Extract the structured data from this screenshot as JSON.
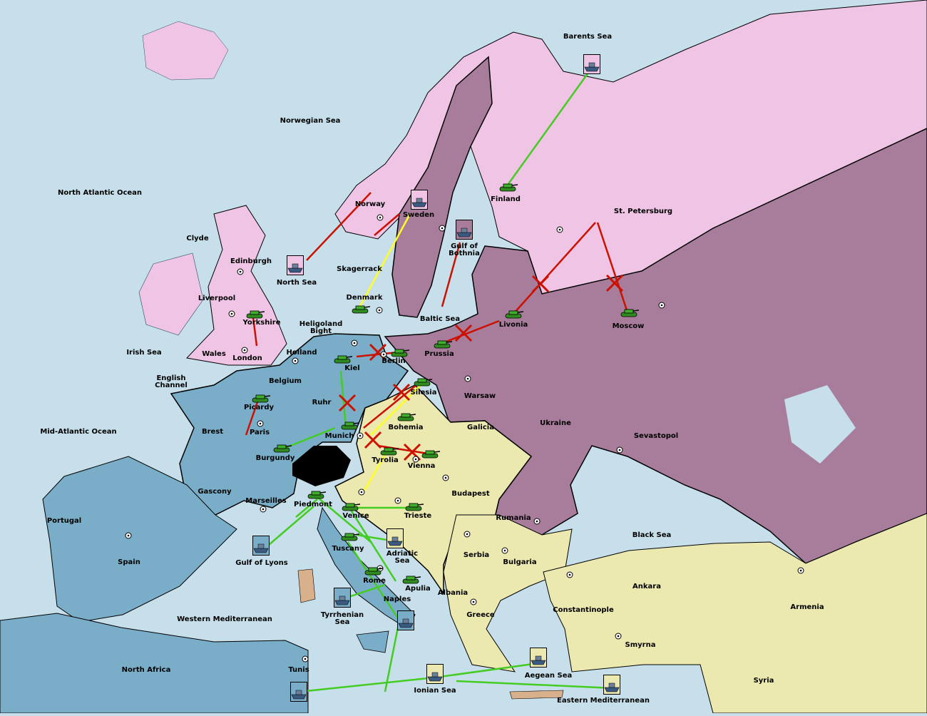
{
  "colors": {
    "sea": "#c6dfea",
    "england_russia_north": "#f0c4e4",
    "russia": "#a87d9c",
    "france_germany": "#7aaec8",
    "austria_turkey": "#ece9b0",
    "neutral": "#d8b08c",
    "impassable": "#000000",
    "order_move": "#44cc22",
    "order_failed": "#cc1100",
    "order_support": "#ffff22"
  },
  "territories": [
    "Barents Sea",
    "Norwegian Sea",
    "North Atlantic Ocean",
    "Norway",
    "Sweden",
    "Finland",
    "St. Petersburg",
    "Clyde",
    "Edinburgh",
    "Gulf of\nBothnia",
    "North Sea",
    "Skagerrack",
    "Liverpool",
    "Denmark",
    "Baltic Sea",
    "Yorkshire",
    "Heligoland\nBight",
    "Livonia",
    "Moscow",
    "Irish Sea",
    "Holland",
    "Wales",
    "Prussia",
    "London",
    "Berlin",
    "Kiel",
    "English\nChannel",
    "Belgium",
    "Silesia",
    "Warsaw",
    "Ruhr",
    "Picardy",
    "Ukraine",
    "Brest",
    "Mid-Atlantic Ocean",
    "Bohemia",
    "Galicia",
    "Paris",
    "Munich",
    "Sevastopol",
    "Burgundy",
    "Tyrolia",
    "Vienna",
    "Gascony",
    "Budapest",
    "Marseilles",
    "Piedmont",
    "Portugal",
    "Venice",
    "Trieste",
    "Rumania",
    "Black Sea",
    "Adriatic\nSea",
    "Serbia",
    "Spain",
    "Gulf of Lyons",
    "Tuscany",
    "Bulgaria",
    "Rome",
    "Apulia",
    "Ankara",
    "Albania",
    "Naples",
    "Armenia",
    "Constantinople",
    "Greece",
    "Tyrrhenian\nSea",
    "Western Mediterranean",
    "Smyrna",
    "North Africa",
    "Tunis",
    "Aegean Sea",
    "Syria",
    "Ionian Sea",
    "Eastern Mediterranean"
  ],
  "units": [
    {
      "type": "army",
      "location": "Finland",
      "power": "england"
    },
    {
      "type": "army",
      "location": "Yorkshire",
      "power": "england"
    },
    {
      "type": "army",
      "location": "Denmark",
      "power": "england"
    },
    {
      "type": "army",
      "location": "Livonia",
      "power": "russia"
    },
    {
      "type": "army",
      "location": "Moscow",
      "power": "russia"
    },
    {
      "type": "army",
      "location": "Kiel",
      "power": "germany"
    },
    {
      "type": "army",
      "location": "Berlin",
      "power": "germany"
    },
    {
      "type": "army",
      "location": "Prussia",
      "power": "russia"
    },
    {
      "type": "army",
      "location": "Silesia",
      "power": "germany"
    },
    {
      "type": "army",
      "location": "Picardy",
      "power": "france"
    },
    {
      "type": "army",
      "location": "Bohemia",
      "power": "austria"
    },
    {
      "type": "army",
      "location": "Munich",
      "power": "germany"
    },
    {
      "type": "army",
      "location": "Burgundy",
      "power": "france"
    },
    {
      "type": "army",
      "location": "Tyrolia",
      "power": "austria"
    },
    {
      "type": "army",
      "location": "Vienna",
      "power": "austria"
    },
    {
      "type": "army",
      "location": "Piedmont",
      "power": "italy"
    },
    {
      "type": "army",
      "location": "Venice",
      "power": "italy"
    },
    {
      "type": "army",
      "location": "Trieste",
      "power": "italy"
    },
    {
      "type": "army",
      "location": "Tuscany",
      "power": "italy"
    },
    {
      "type": "army",
      "location": "Rome",
      "power": "italy"
    },
    {
      "type": "army",
      "location": "Apulia",
      "power": "italy"
    },
    {
      "type": "fleet",
      "location": "Barents Sea",
      "power": "england"
    },
    {
      "type": "fleet",
      "location": "Sweden",
      "power": "england"
    },
    {
      "type": "fleet",
      "location": "Gulf of Bothnia",
      "power": "russia"
    },
    {
      "type": "fleet",
      "location": "North Sea",
      "power": "england"
    },
    {
      "type": "fleet",
      "location": "Gulf of Lyons",
      "power": "france"
    },
    {
      "type": "fleet",
      "location": "Adriatic Sea",
      "power": "austria"
    },
    {
      "type": "fleet",
      "location": "Tyrrhenian Sea",
      "power": "italy"
    },
    {
      "type": "fleet",
      "location": "Naples",
      "power": "italy"
    },
    {
      "type": "fleet",
      "location": "Tunis",
      "power": "italy"
    },
    {
      "type": "fleet",
      "location": "Ionian Sea",
      "power": "austria"
    },
    {
      "type": "fleet",
      "location": "Aegean Sea",
      "power": "austria"
    },
    {
      "type": "fleet",
      "location": "Eastern Mediterranean",
      "power": "austria"
    }
  ]
}
